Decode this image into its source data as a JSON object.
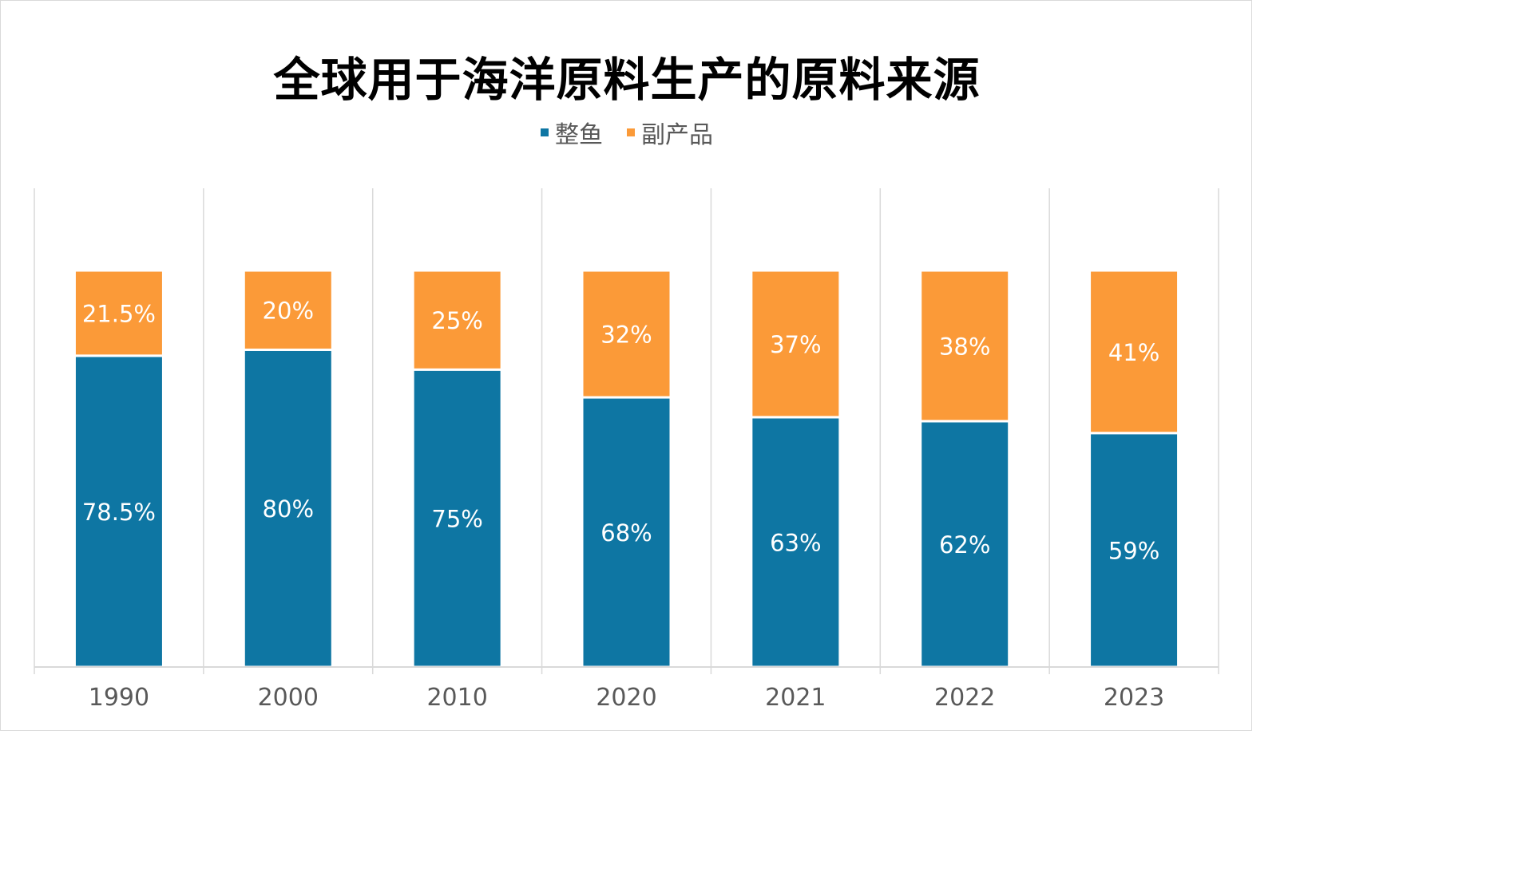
{
  "chart_data": {
    "type": "bar",
    "stacked": true,
    "percent_stacked": true,
    "title": "全球用于海洋原料生产的原料来源",
    "categories": [
      "1990",
      "2000",
      "2010",
      "2020",
      "2021",
      "2022",
      "2023"
    ],
    "series": [
      {
        "name": "整鱼",
        "color": "#0e76a3",
        "values": [
          78.5,
          80,
          75,
          68,
          63,
          62,
          59
        ],
        "labels": [
          "78.5%",
          "80%",
          "75%",
          "68%",
          "63%",
          "62%",
          "59%"
        ]
      },
      {
        "name": "副产品",
        "color": "#fb9a38",
        "values": [
          21.5,
          20,
          25,
          32,
          37,
          38,
          41
        ],
        "labels": [
          "21.5%",
          "20%",
          "25%",
          "32%",
          "37%",
          "38%",
          "41%"
        ]
      }
    ],
    "ylim": [
      0,
      100
    ],
    "legend_position": "top-center",
    "grid": "vertical category separators",
    "axis_color": "#d9d9d9",
    "tick_label_color": "#595959",
    "data_label_color": "#ffffff"
  }
}
